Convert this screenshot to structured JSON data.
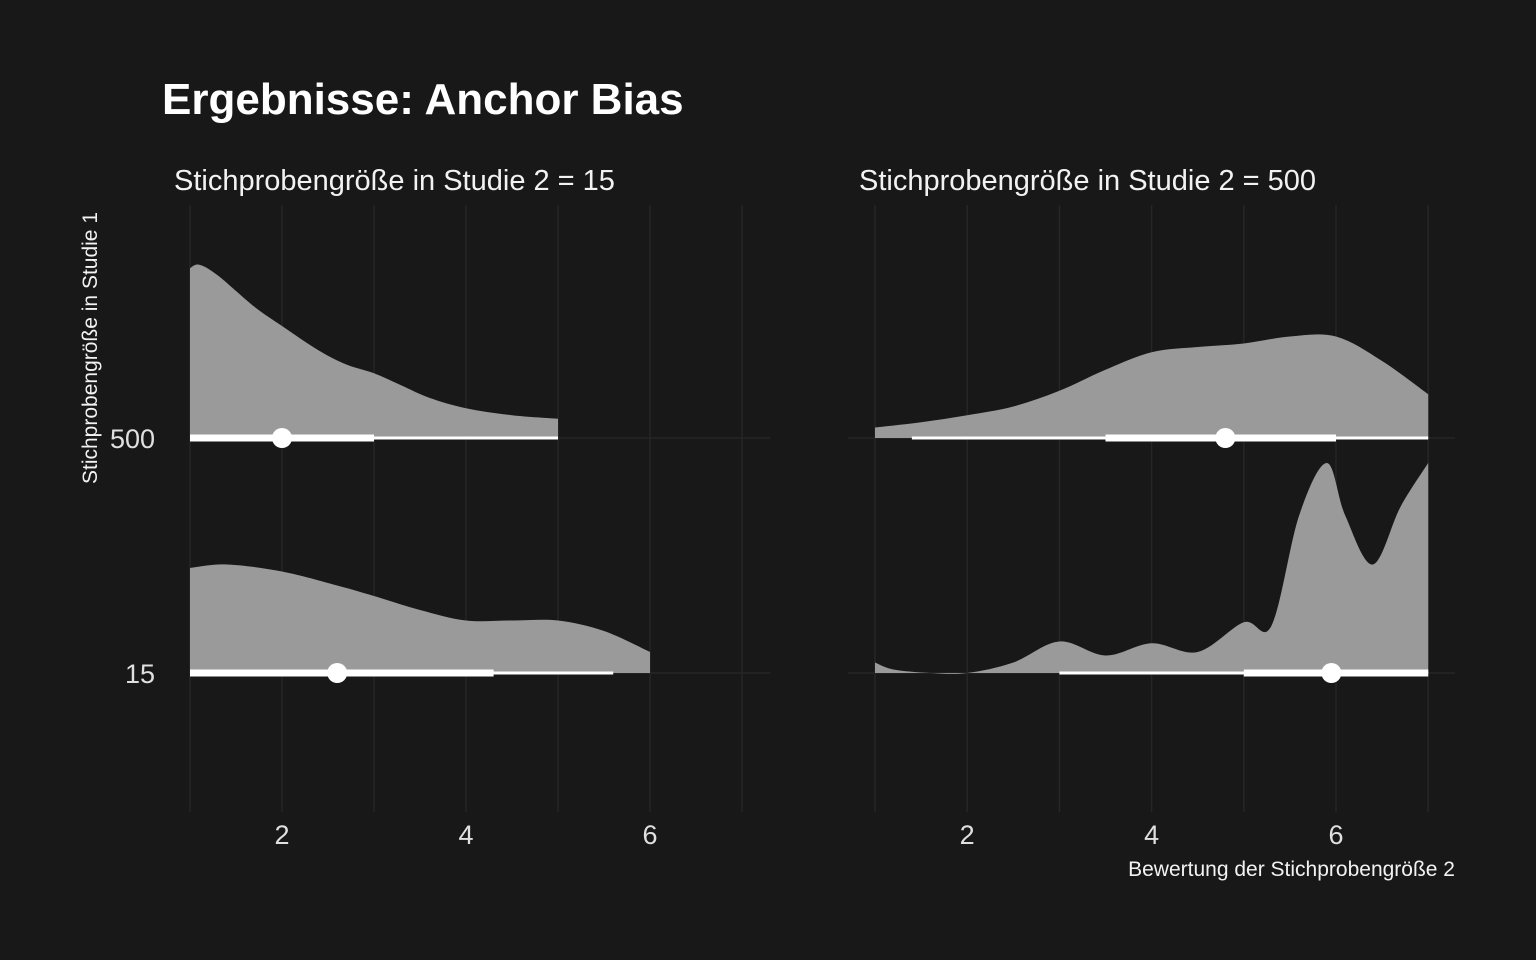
{
  "colors": {
    "background": "#181818",
    "density_fill": "#9a9a9a",
    "interval": "#ffffff",
    "grid": "#262626",
    "text": "#f2f2f2"
  },
  "chart_data": {
    "type": "area",
    "subtype": "halfeye-density",
    "title": "Ergebnisse: Anchor Bias",
    "xlabel": "Bewertung der Stichprobengröße 2",
    "ylabel": "Stichprobengröße in Studie 1",
    "xlim": [
      1,
      7
    ],
    "x_ticks": [
      "2",
      "4",
      "6"
    ],
    "y_categories": [
      "15",
      "500"
    ],
    "grid": true,
    "facets": [
      {
        "label": "Stichprobengröße in Studie 2 = 15",
        "rows": [
          {
            "category": "500",
            "density": {
              "x": [
                1.0,
                1.1,
                1.3,
                1.7,
                2.0,
                2.4,
                2.7,
                3.0,
                3.3,
                3.6,
                4.0,
                4.5,
                5.0
              ],
              "y": [
                0.97,
                0.99,
                0.93,
                0.75,
                0.64,
                0.5,
                0.42,
                0.37,
                0.3,
                0.23,
                0.17,
                0.13,
                0.11
              ]
            },
            "point": 2.0,
            "interval_66": [
              1.0,
              3.0
            ],
            "interval_95": [
              1.0,
              5.0
            ]
          },
          {
            "category": "15",
            "density": {
              "x": [
                1.0,
                1.4,
                2.0,
                2.6,
                3.0,
                3.5,
                4.0,
                4.5,
                5.0,
                5.5,
                6.0
              ],
              "y": [
                0.6,
                0.62,
                0.58,
                0.5,
                0.44,
                0.36,
                0.3,
                0.3,
                0.3,
                0.24,
                0.12
              ]
            },
            "point": 2.6,
            "interval_66": [
              1.0,
              4.3
            ],
            "interval_95": [
              1.0,
              5.6
            ]
          }
        ]
      },
      {
        "label": "Stichprobengröße in Studie 2 = 500",
        "rows": [
          {
            "category": "500",
            "density": {
              "x": [
                1.0,
                1.5,
                2.0,
                2.5,
                3.0,
                3.5,
                4.0,
                4.5,
                5.0,
                5.5,
                6.0,
                6.5,
                7.0
              ],
              "y": [
                0.06,
                0.09,
                0.13,
                0.18,
                0.27,
                0.39,
                0.49,
                0.52,
                0.54,
                0.58,
                0.58,
                0.44,
                0.25
              ]
            },
            "point": 4.8,
            "interval_66": [
              3.5,
              6.0
            ],
            "interval_95": [
              1.4,
              7.0
            ]
          },
          {
            "category": "15",
            "density": {
              "x": [
                1.0,
                1.2,
                1.6,
                2.0,
                2.5,
                3.0,
                3.5,
                4.0,
                4.5,
                5.0,
                5.3,
                5.6,
                5.9,
                6.1,
                6.4,
                6.7,
                7.0
              ],
              "y": [
                0.06,
                0.02,
                0.0,
                0.0,
                0.06,
                0.18,
                0.1,
                0.17,
                0.12,
                0.29,
                0.27,
                0.9,
                1.2,
                0.9,
                0.62,
                0.95,
                1.2
              ]
            },
            "point": 5.95,
            "interval_66": [
              5.0,
              7.0
            ],
            "interval_95": [
              3.0,
              7.0
            ]
          }
        ]
      }
    ]
  }
}
